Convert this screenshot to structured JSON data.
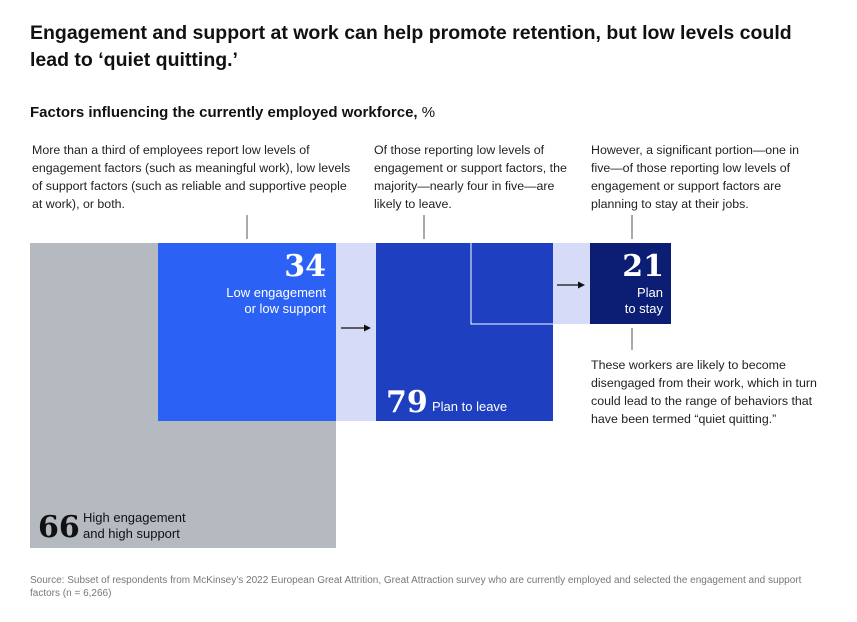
{
  "header": {
    "title": "Engagement and support at work can help promote retention, but low levels could lead to ‘quiet quitting.’",
    "subtitle": "Factors influencing the currently employed workforce,",
    "subtitle_unit": "%"
  },
  "annotations": {
    "note1": "More than a third of employees report low levels of engagement factors (such as meaningful work), low levels of support factors (such as reliable and supportive people at work), or both.",
    "note2": "Of those reporting low levels of engagement or support factors, the majority—nearly four in five—are likely to leave.",
    "note3": "However, a significant portion—one in five—of those reporting low levels of engagement or support factors are planning to stay at their jobs.",
    "note4": "These workers are likely to become disengaged from their work, which in turn could lead to the range of behaviors that have been termed “quiet quitting.”"
  },
  "source": "Source: Subset of respondents from McKinsey’s 2022 European Great Attrition, Great Attraction survey who are currently employed and selected the engagement and support factors (n = 6,266)",
  "chart_data": {
    "type": "nested-area",
    "unit": "%",
    "segments": [
      {
        "id": "high",
        "value": 66,
        "label_line1": "High engagement",
        "label_line2": "and high support",
        "color": "#b5b9c0"
      },
      {
        "id": "low",
        "value": 34,
        "label_line1": "Low engagement",
        "label_line2": "or low support",
        "color": "#2b62f5"
      },
      {
        "id": "leave",
        "value": 79,
        "label": "Plan to leave",
        "color": "#1e3fbf"
      },
      {
        "id": "stay",
        "value": 21,
        "label_line1": "Plan",
        "label_line2": "to stay",
        "color": "#0b1e74"
      }
    ],
    "value_labels": {
      "high": "66",
      "low": "34",
      "leave": "79",
      "stay": "21"
    },
    "connector_color": "#d6dcf7"
  }
}
